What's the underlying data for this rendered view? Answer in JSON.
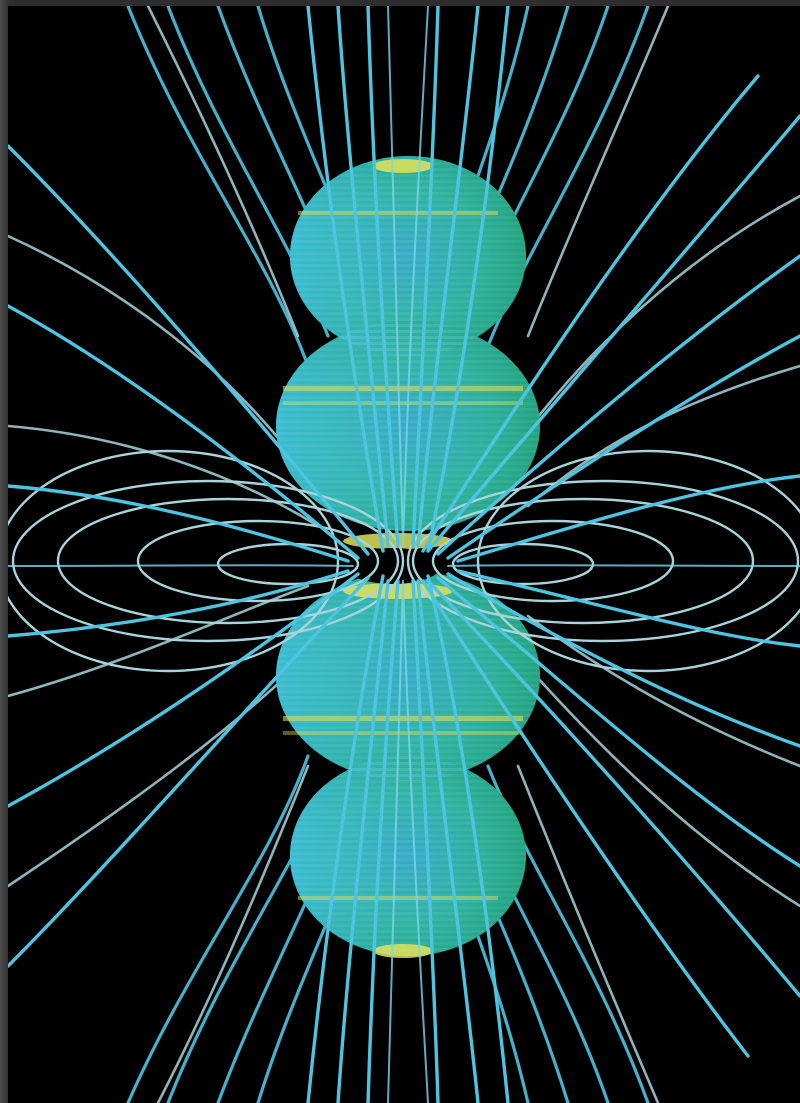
{
  "image": {
    "subject": "magnetic-field-visualization",
    "colors": {
      "background": "#000000",
      "frame": "#2e2e2e",
      "field_line_cyan": "#4fc4e0",
      "field_line_pale": "#a9d4dc",
      "lobe_cyan": "#3cb5d6",
      "lobe_green": "#22b080",
      "band_yellow": "#e3e35a"
    }
  }
}
